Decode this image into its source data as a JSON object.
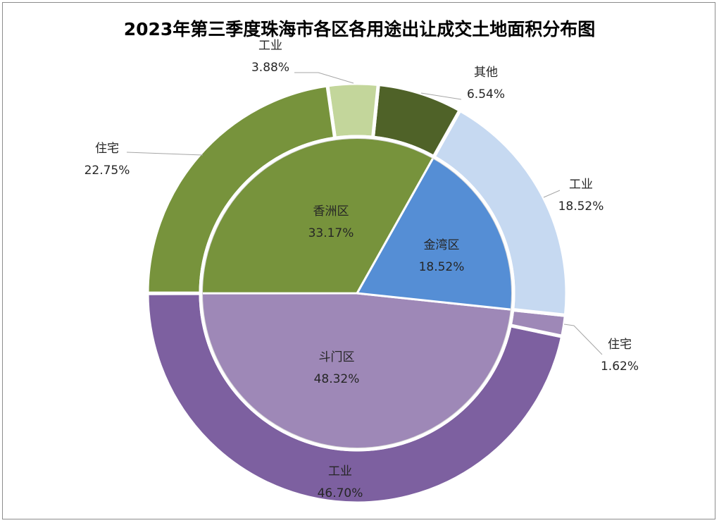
{
  "chart_data": {
    "type": "pie",
    "title": "2023年第三季度珠海市各区各用途出让成交土地面积分布图",
    "inner_ring": [
      {
        "category": "斗门区",
        "value": 48.32,
        "label": "48.32%",
        "color": "#9e88b7"
      },
      {
        "category": "香洲区",
        "value": 33.17,
        "label": "33.17%",
        "color": "#77933c"
      },
      {
        "category": "金湾区",
        "value": 18.52,
        "label": "18.52%",
        "color": "#558ed5"
      }
    ],
    "outer_ring": [
      {
        "category": "工业",
        "district": "斗门区",
        "value": 46.7,
        "label": "46.70%",
        "color": "#7d60a0"
      },
      {
        "category": "住宅",
        "district": "香洲区",
        "value": 22.75,
        "label": "22.75%",
        "color": "#77933c"
      },
      {
        "category": "工业",
        "district": "香洲区",
        "value": 3.88,
        "label": "3.88%",
        "color": "#c3d69b"
      },
      {
        "category": "其他",
        "district": "香洲区",
        "value": 6.54,
        "label": "6.54%",
        "color": "#4f6228"
      },
      {
        "category": "工业",
        "district": "金湾区",
        "value": 18.52,
        "label": "18.52%",
        "color": "#c6d9f1"
      },
      {
        "category": "住宅",
        "district": "斗门区",
        "value": 1.62,
        "label": "1.62%",
        "color": "#9e88b7"
      }
    ]
  }
}
